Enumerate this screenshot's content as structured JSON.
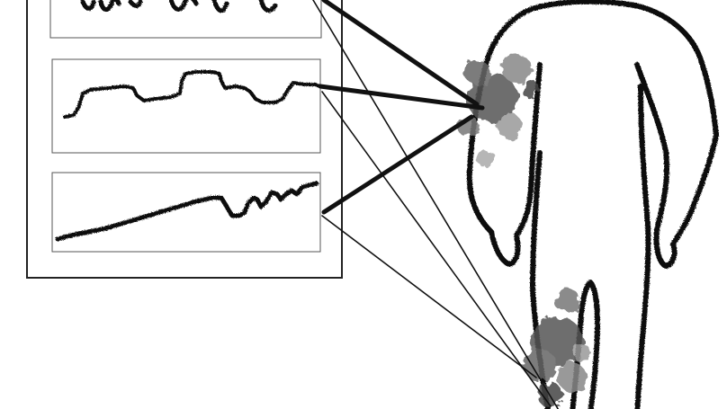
{
  "diagram": {
    "panels": [
      {
        "pattern": "oscillating"
      },
      {
        "pattern": "stepped"
      },
      {
        "pattern": "rising"
      }
    ],
    "connectors": {
      "thick_links": 3,
      "thin_links": 3
    },
    "regions": [
      {
        "name": "upper-arm-splotch"
      },
      {
        "name": "lower-leg-splotch"
      }
    ],
    "colors": {
      "ink": "#111111",
      "splotch_dark": "#444444",
      "splotch_light": "#9a9a9a",
      "background": "#ffffff"
    }
  }
}
